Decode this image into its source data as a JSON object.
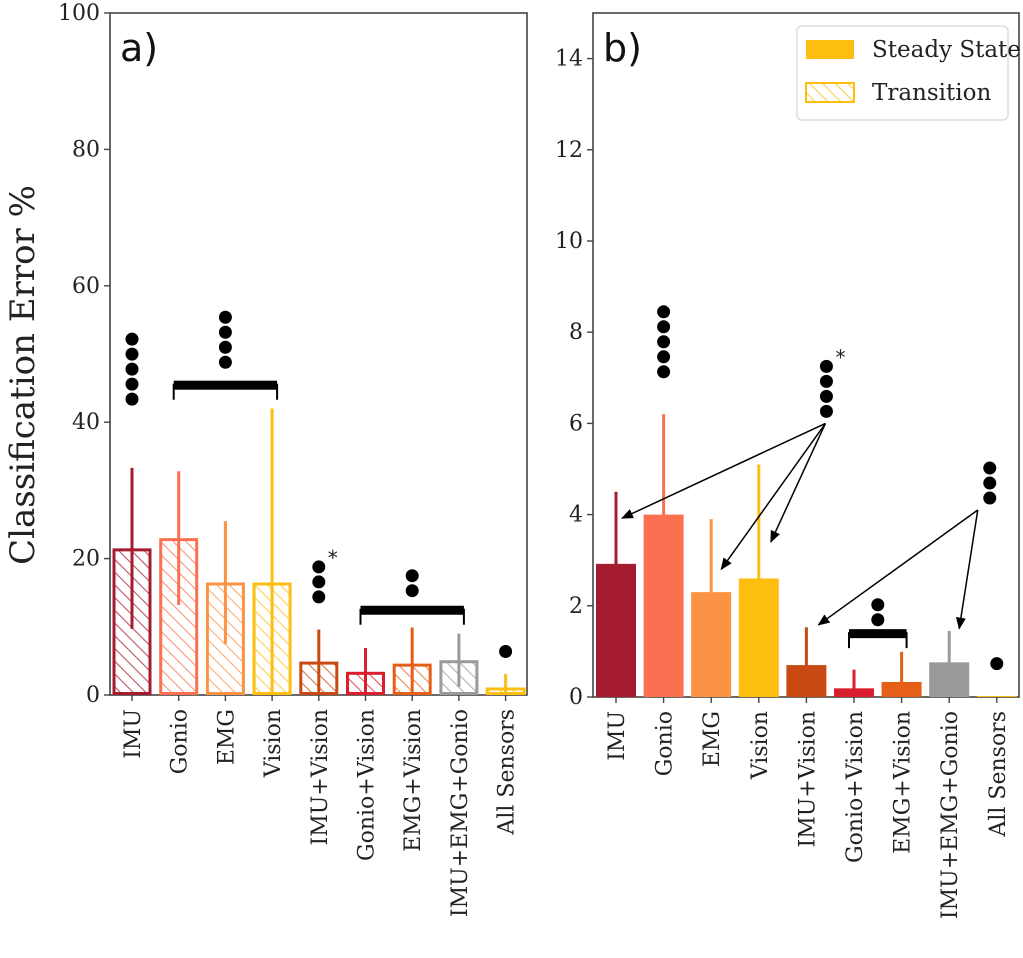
{
  "chart_data": [
    {
      "panel": "a)",
      "type": "bar",
      "variant": "Transition",
      "hatched": true,
      "categories": [
        "IMU",
        "Gonio",
        "EMG",
        "Vision",
        "IMU+Vision",
        "Gonio+Vision",
        "EMG+Vision",
        "IMU+EMG+Gonio",
        "All Sensors"
      ],
      "values": [
        21.5,
        23.0,
        16.5,
        16.5,
        4.9,
        3.4,
        4.6,
        5.1,
        1.1
      ],
      "error": [
        11.8,
        9.8,
        9.0,
        25.5,
        4.7,
        3.5,
        5.3,
        3.9,
        2.0
      ],
      "colors": [
        "#a51c30",
        "#fb7050",
        "#fb9344",
        "#fdbe10",
        "#c84a12",
        "#d91e2e",
        "#e65f18",
        "#9a9a9a",
        "#fdbe10"
      ],
      "ylabel": "Classification Error %",
      "xlabel": "",
      "ylim": [
        0,
        100
      ],
      "yticks": [
        0,
        20,
        40,
        60,
        80,
        100
      ],
      "ytick_labels": [
        "0",
        "20",
        "40",
        "60",
        "80",
        "100"
      ],
      "grid": false,
      "annotations": [
        {
          "type": "dots",
          "count": 5,
          "over": [
            "IMU"
          ],
          "at_value": 42.5
        },
        {
          "type": "bracket-dots",
          "count": 4,
          "over": [
            "Gonio",
            "Vision"
          ],
          "at_value": 45.5,
          "dots_from": 48.5
        },
        {
          "type": "dots",
          "count": 3,
          "star": true,
          "over": [
            "IMU+Vision"
          ],
          "at_value": 13.5
        },
        {
          "type": "bracket-dots",
          "count": 2,
          "over": [
            "Gonio+Vision",
            "IMU+EMG+Gonio"
          ],
          "at_value": 12.5,
          "dots_from": 15.0
        },
        {
          "type": "dots",
          "count": 1,
          "over": [
            "All Sensors"
          ],
          "at_value": 5.5
        }
      ]
    },
    {
      "panel": "b)",
      "type": "bar",
      "variant": "Steady State",
      "hatched": false,
      "categories": [
        "IMU",
        "Gonio",
        "EMG",
        "Vision",
        "IMU+Vision",
        "Gonio+Vision",
        "EMG+Vision",
        "IMU+EMG+Gonio",
        "All Sensors"
      ],
      "values": [
        2.92,
        4.0,
        2.3,
        2.6,
        0.7,
        0.19,
        0.33,
        0.76,
        0.02
      ],
      "error": [
        1.58,
        2.2,
        1.6,
        2.5,
        0.83,
        0.41,
        0.66,
        0.69,
        0.0
      ],
      "colors": [
        "#a51c30",
        "#fb7050",
        "#fb9344",
        "#fdbe10",
        "#c84a12",
        "#d91e2e",
        "#e65f18",
        "#9a9a9a",
        "#fdbe10"
      ],
      "ylabel": "",
      "xlabel": "",
      "ylim": [
        0,
        15
      ],
      "yticks": [
        0,
        2,
        4,
        6,
        8,
        10,
        12,
        14
      ],
      "ytick_labels": [
        "0",
        "2",
        "4",
        "6",
        "8",
        "10",
        "12",
        "14"
      ],
      "grid": false,
      "legend": {
        "placement": "top-right",
        "entries": [
          {
            "label": "Steady State",
            "style": "solid",
            "color": "#fdbe10"
          },
          {
            "label": "Transition",
            "style": "hatched",
            "color": "#fdbe10"
          }
        ]
      },
      "annotations": [
        {
          "type": "dots",
          "count": 5,
          "over": [
            "Gonio"
          ],
          "at_value": 7.0
        },
        {
          "type": "dots-arrows",
          "count": 4,
          "star": true,
          "origin": {
            "category_pos": 4.4,
            "value": 6.0
          },
          "targets": [
            "IMU",
            "EMG",
            "Vision"
          ],
          "dots_at_value": 6.2
        },
        {
          "type": "dots-arrows",
          "count": 3,
          "origin": {
            "category_pos": 7.6,
            "value": 4.1
          },
          "targets": [
            "IMU+Vision",
            "IMU+EMG+Gonio"
          ],
          "dots_at_value": 4.1
        },
        {
          "type": "bracket-dots",
          "count": 2,
          "over": [
            "Gonio+Vision",
            "EMG+Vision"
          ],
          "at_value": 1.4,
          "dots_from": 1.65
        },
        {
          "type": "dots",
          "count": 1,
          "over": [
            "All Sensors"
          ],
          "at_value": 0.6
        }
      ]
    }
  ]
}
